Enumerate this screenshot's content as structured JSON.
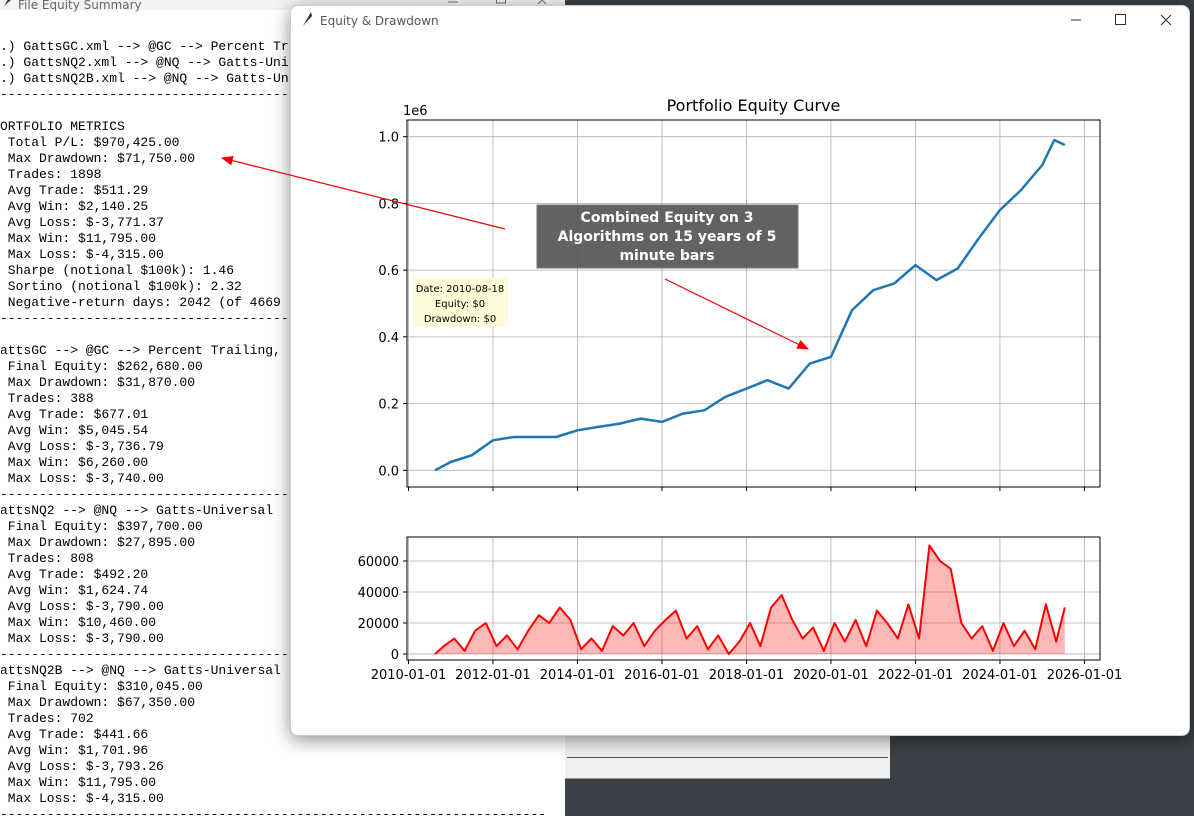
{
  "summary_window": {
    "title": "File Equity Summary",
    "files": [
      ".) GattsGC.xml --> @GC --> Percent Tr",
      ".) GattsNQ2.xml --> @NQ --> Gatts-Uni",
      ".) GattsNQ2B.xml --> @NQ --> Gatts-Un"
    ],
    "separator": "----------------------------------------------------------------------",
    "portfolio": {
      "heading": "ORTFOLIO METRICS",
      "lines": [
        " Total P/L: $970,425.00",
        " Max Drawdown: $71,750.00",
        " Trades: 1898",
        " Avg Trade: $511.29",
        " Avg Win: $2,140.25",
        " Avg Loss: $-3,771.37",
        " Max Win: $11,795.00",
        " Max Loss: $-4,315.00",
        " Sharpe (notional $100k): 1.46",
        " Sortino (notional $100k): 2.32",
        " Negative-return days: 2042 (of 4669"
      ]
    },
    "systems": [
      {
        "heading": "attsGC --> @GC --> Percent Trailing,",
        "lines": [
          " Final Equity: $262,680.00",
          " Max Drawdown: $31,870.00",
          " Trades: 388",
          " Avg Trade: $677.01",
          " Avg Win: $5,045.54",
          " Avg Loss: $-3,736.79",
          " Max Win: $6,260.00",
          " Max Loss: $-3,740.00"
        ]
      },
      {
        "heading": "attsNQ2 --> @NQ --> Gatts-Universal",
        "lines": [
          " Final Equity: $397,700.00",
          " Max Drawdown: $27,895.00",
          " Trades: 808",
          " Avg Trade: $492.20",
          " Avg Win: $1,624.74",
          " Avg Loss: $-3,790.00",
          " Max Win: $10,460.00",
          " Max Loss: $-3,790.00"
        ]
      },
      {
        "heading": "attsNQ2B --> @NQ --> Gatts-Universal",
        "lines": [
          " Final Equity: $310,045.00",
          " Max Drawdown: $67,350.00",
          " Trades: 702",
          " Avg Trade: $441.66",
          " Avg Win: $1,701.96",
          " Avg Loss: $-3,793.26",
          " Max Win: $11,795.00",
          " Max Loss: $-4,315.00"
        ]
      }
    ]
  },
  "main_window": {
    "title": "Equity & Drawdown"
  },
  "chart_data": [
    {
      "type": "line",
      "title": "Portfolio Equity Curve",
      "offset_label": "1e6",
      "x": [
        "2010-08-18",
        "2011-01-01",
        "2011-07-01",
        "2012-01-01",
        "2012-07-01",
        "2013-01-01",
        "2013-07-01",
        "2014-01-01",
        "2014-07-01",
        "2015-01-01",
        "2015-07-01",
        "2016-01-01",
        "2016-07-01",
        "2017-01-01",
        "2017-07-01",
        "2018-01-01",
        "2018-07-01",
        "2019-01-01",
        "2019-07-01",
        "2020-01-01",
        "2020-07-01",
        "2021-01-01",
        "2021-07-01",
        "2022-01-01",
        "2022-07-01",
        "2023-01-01",
        "2023-07-01",
        "2024-01-01",
        "2024-07-01",
        "2025-01-01",
        "2025-04-15",
        "2025-07-15"
      ],
      "series": [
        {
          "color": "#1f77b4",
          "values": [
            0,
            0.025,
            0.045,
            0.09,
            0.1,
            0.1,
            0.1,
            0.12,
            0.13,
            0.14,
            0.155,
            0.145,
            0.17,
            0.18,
            0.22,
            0.245,
            0.27,
            0.245,
            0.32,
            0.34,
            0.48,
            0.54,
            0.56,
            0.615,
            0.57,
            0.605,
            0.695,
            0.78,
            0.84,
            0.915,
            0.99,
            0.975
          ]
        }
      ],
      "xlim": [
        "2009-12-19",
        "2026-05-15"
      ],
      "xticks": [
        "2010-01-01",
        "2012-01-01",
        "2014-01-01",
        "2016-01-01",
        "2018-01-01",
        "2020-01-01",
        "2022-01-01",
        "2024-01-01",
        "2026-01-01"
      ],
      "ylim": [
        -0.05,
        1.05
      ],
      "yticks": [
        {
          "value": 0,
          "label": "0.0"
        },
        0.2,
        0.4,
        0.6,
        0.8,
        {
          "value": 1,
          "label": "1.0"
        }
      ],
      "grid": true,
      "annotation": [
        "Combined Equity on 3",
        "Algorithms on 15 years of 5",
        "minute bars"
      ],
      "tooltip": [
        "Date: 2010-08-18",
        "Equity: $0",
        "Drawdown: $0"
      ]
    },
    {
      "type": "area",
      "x": [
        "2010-08-18",
        "2010-11-01",
        "2011-02-01",
        "2011-05-01",
        "2011-08-01",
        "2011-11-01",
        "2012-02-01",
        "2012-05-01",
        "2012-08-01",
        "2012-11-01",
        "2013-02-01",
        "2013-05-01",
        "2013-08-01",
        "2013-11-01",
        "2014-02-01",
        "2014-05-01",
        "2014-08-01",
        "2014-11-01",
        "2015-02-01",
        "2015-05-01",
        "2015-08-01",
        "2015-11-01",
        "2016-02-01",
        "2016-05-01",
        "2016-08-01",
        "2016-11-01",
        "2017-02-01",
        "2017-05-01",
        "2017-08-01",
        "2017-11-01",
        "2018-02-01",
        "2018-05-01",
        "2018-08-01",
        "2018-11-01",
        "2019-02-01",
        "2019-05-01",
        "2019-08-01",
        "2019-11-01",
        "2020-02-01",
        "2020-05-01",
        "2020-08-01",
        "2020-11-01",
        "2021-02-01",
        "2021-05-01",
        "2021-08-01",
        "2021-11-01",
        "2022-02-01",
        "2022-05-01",
        "2022-08-01",
        "2022-11-01",
        "2023-02-01",
        "2023-05-01",
        "2023-08-01",
        "2023-11-01",
        "2024-02-01",
        "2024-05-01",
        "2024-08-01",
        "2024-11-01",
        "2025-02-01",
        "2025-05-01",
        "2025-07-15"
      ],
      "series": [
        {
          "color": "#ff0000",
          "values": [
            0,
            5000,
            10000,
            2000,
            15000,
            20000,
            5000,
            12000,
            3000,
            15000,
            25000,
            20000,
            30000,
            22000,
            3000,
            10000,
            2000,
            18000,
            12000,
            20000,
            5000,
            15000,
            22000,
            28000,
            10000,
            18000,
            3000,
            12000,
            0,
            8000,
            20000,
            5000,
            30000,
            38000,
            22000,
            10000,
            17000,
            2000,
            20000,
            8000,
            22000,
            5000,
            28000,
            20000,
            10000,
            32000,
            10000,
            70000,
            60000,
            55000,
            20000,
            10000,
            18000,
            2000,
            20000,
            5000,
            15000,
            3000,
            32000,
            8000,
            30000
          ]
        }
      ],
      "xlim": [
        "2009-12-19",
        "2026-05-15"
      ],
      "xticks": [
        "2010-01-01",
        "2012-01-01",
        "2014-01-01",
        "2016-01-01",
        "2018-01-01",
        "2020-01-01",
        "2022-01-01",
        "2024-01-01",
        "2026-01-01"
      ],
      "ylim": [
        -3900,
        75500
      ],
      "yticks": [
        0,
        20000,
        40000,
        60000
      ],
      "grid": true
    }
  ]
}
